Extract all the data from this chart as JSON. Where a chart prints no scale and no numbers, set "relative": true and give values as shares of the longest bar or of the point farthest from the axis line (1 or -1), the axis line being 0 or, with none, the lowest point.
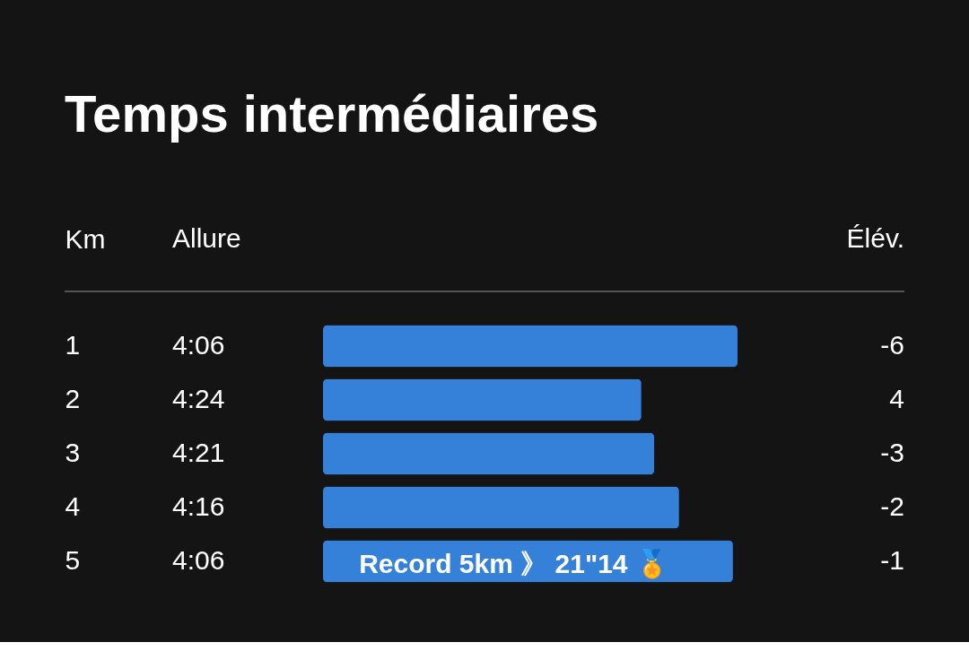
{
  "chart_data": {
    "type": "bar",
    "orientation": "horizontal",
    "relative": true,
    "title": "Temps intermédiaires",
    "ylabel": "Km",
    "categories": [
      "1",
      "2",
      "3",
      "4",
      "5"
    ],
    "values": [
      1,
      0.768,
      0.799,
      0.859,
      0.989
    ],
    "color": "#3580d8",
    "annotations": [
      "Allure",
      "Élév.",
      "Record 5km 》 21\"14 🏅",
      "4:06",
      "4:24",
      "4:21",
      "4:16",
      "4:06",
      "-6",
      "4",
      "-3",
      "-2",
      "-1"
    ],
    "grid": false
  }
}
